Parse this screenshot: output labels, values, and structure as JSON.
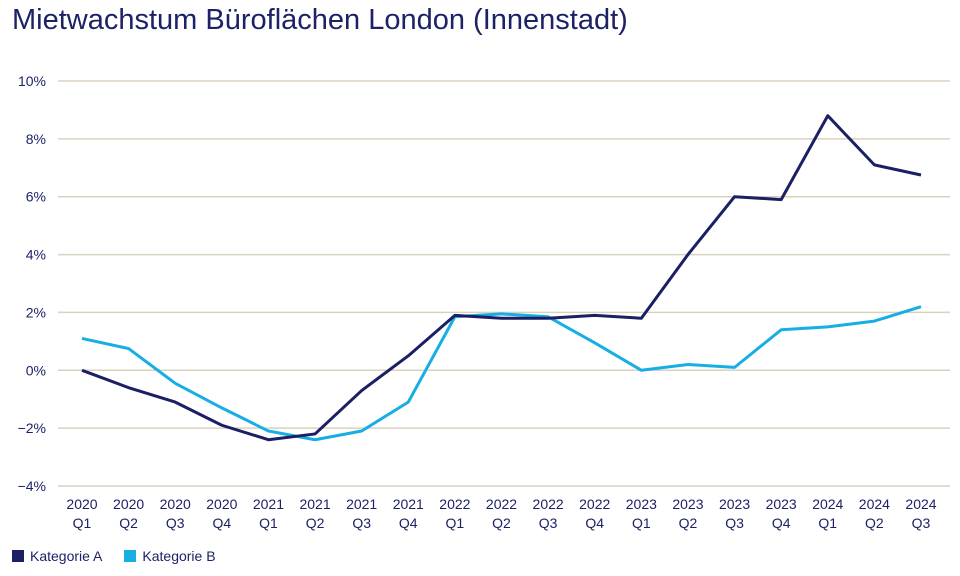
{
  "chart_data": {
    "type": "line",
    "title": "Mietwachstum Büroflächen London (Innenstadt)",
    "xlabel": "",
    "ylabel": "",
    "ylim": [
      -4,
      10
    ],
    "yticks": [
      -4,
      -2,
      0,
      2,
      4,
      6,
      8,
      10
    ],
    "ytick_labels": [
      "−4%",
      "−2%",
      "0%",
      "2%",
      "4%",
      "6%",
      "8%",
      "10%"
    ],
    "grid": true,
    "legend_position": "bottom-left",
    "categories": [
      [
        "2020",
        "Q1"
      ],
      [
        "2020",
        "Q2"
      ],
      [
        "2020",
        "Q3"
      ],
      [
        "2020",
        "Q4"
      ],
      [
        "2021",
        "Q1"
      ],
      [
        "2021",
        "Q2"
      ],
      [
        "2021",
        "Q3"
      ],
      [
        "2021",
        "Q4"
      ],
      [
        "2022",
        "Q1"
      ],
      [
        "2022",
        "Q2"
      ],
      [
        "2022",
        "Q3"
      ],
      [
        "2022",
        "Q4"
      ],
      [
        "2023",
        "Q1"
      ],
      [
        "2023",
        "Q2"
      ],
      [
        "2023",
        "Q3"
      ],
      [
        "2023",
        "Q4"
      ],
      [
        "2024",
        "Q1"
      ],
      [
        "2024",
        "Q2"
      ],
      [
        "2024",
        "Q3"
      ]
    ],
    "series": [
      {
        "name": "Kategorie A",
        "color": "#1b1f63",
        "values": [
          0,
          -0.6,
          -1.1,
          -1.9,
          -2.4,
          -2.2,
          -0.7,
          0.5,
          1.9,
          1.8,
          1.8,
          1.9,
          1.8,
          4.0,
          6.0,
          5.9,
          8.8,
          7.1,
          6.75
        ]
      },
      {
        "name": "Kategorie B",
        "color": "#17aee6",
        "values": [
          1.1,
          0.75,
          -0.45,
          -1.3,
          -2.1,
          -2.4,
          -2.1,
          -1.1,
          1.85,
          1.95,
          1.85,
          0.95,
          0,
          0.2,
          0.1,
          1.4,
          1.5,
          1.7,
          2.2
        ]
      }
    ]
  },
  "colors": {
    "grid": "#d9d2bd",
    "text": "#1d2266"
  }
}
